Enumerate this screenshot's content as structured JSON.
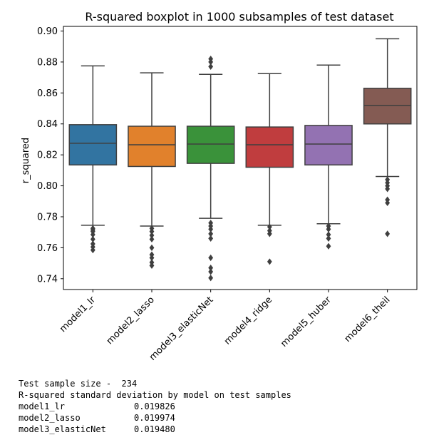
{
  "chart_data": {
    "type": "boxplot",
    "title": "R-squared boxplot in 1000 subsamples of test dataset",
    "xlabel": "",
    "ylabel": "r_squared",
    "ylim": [
      0.733,
      0.903
    ],
    "yticks": [
      0.74,
      0.76,
      0.78,
      0.8,
      0.82,
      0.84,
      0.86,
      0.88,
      0.9
    ],
    "ytick_labels": [
      "0.74",
      "0.76",
      "0.78",
      "0.80",
      "0.82",
      "0.84",
      "0.86",
      "0.88",
      "0.90"
    ],
    "grid": false,
    "categories": [
      "model1_lr",
      "model2_lasso",
      "model3_elasticNet",
      "model4_ridge",
      "model5_huber",
      "model6_theil"
    ],
    "boxes": [
      {
        "name": "model1_lr",
        "color": "#3274a1",
        "whisker_low": 0.7745,
        "q1": 0.8135,
        "median": 0.8275,
        "q3": 0.8395,
        "whisker_high": 0.8775,
        "outliers": [
          0.7585,
          0.7605,
          0.7625,
          0.7655,
          0.7685,
          0.7705,
          0.7715,
          0.7725
        ]
      },
      {
        "name": "model2_lasso",
        "color": "#e1812c",
        "whisker_low": 0.774,
        "q1": 0.8125,
        "median": 0.8265,
        "q3": 0.8385,
        "whisker_high": 0.873,
        "outliers": [
          0.7485,
          0.7505,
          0.7535,
          0.7555,
          0.76,
          0.7655,
          0.768,
          0.7705,
          0.7725
        ]
      },
      {
        "name": "model3_elasticNet",
        "color": "#3a923a",
        "whisker_low": 0.779,
        "q1": 0.8145,
        "median": 0.827,
        "q3": 0.8385,
        "whisker_high": 0.872,
        "outliers": [
          0.7405,
          0.7445,
          0.747,
          0.7535,
          0.766,
          0.769,
          0.772,
          0.774,
          0.776,
          0.877,
          0.88,
          0.882
        ]
      },
      {
        "name": "model4_ridge",
        "color": "#c03d3e",
        "whisker_low": 0.7745,
        "q1": 0.812,
        "median": 0.8265,
        "q3": 0.838,
        "whisker_high": 0.8725,
        "outliers": [
          0.751,
          0.769,
          0.771,
          0.7735
        ]
      },
      {
        "name": "model5_huber",
        "color": "#9372b2",
        "whisker_low": 0.7755,
        "q1": 0.8135,
        "median": 0.827,
        "q3": 0.839,
        "whisker_high": 0.878,
        "outliers": [
          0.761,
          0.766,
          0.7685,
          0.772,
          0.774
        ]
      },
      {
        "name": "model6_theil",
        "color": "#845b53",
        "whisker_low": 0.806,
        "q1": 0.84,
        "median": 0.852,
        "q3": 0.863,
        "whisker_high": 0.895,
        "outliers": [
          0.769,
          0.789,
          0.791,
          0.798,
          0.8,
          0.802,
          0.804
        ]
      }
    ]
  },
  "console": {
    "sample_size_line": "Test sample size -  234",
    "stddev_header": "R-squared standard deviation by model on test samples",
    "rows": [
      {
        "model": "model1_lr",
        "value": "0.019826"
      },
      {
        "model": "model2_lasso",
        "value": "0.019974"
      },
      {
        "model": "model3_elasticNet",
        "value": "0.019480"
      }
    ]
  }
}
